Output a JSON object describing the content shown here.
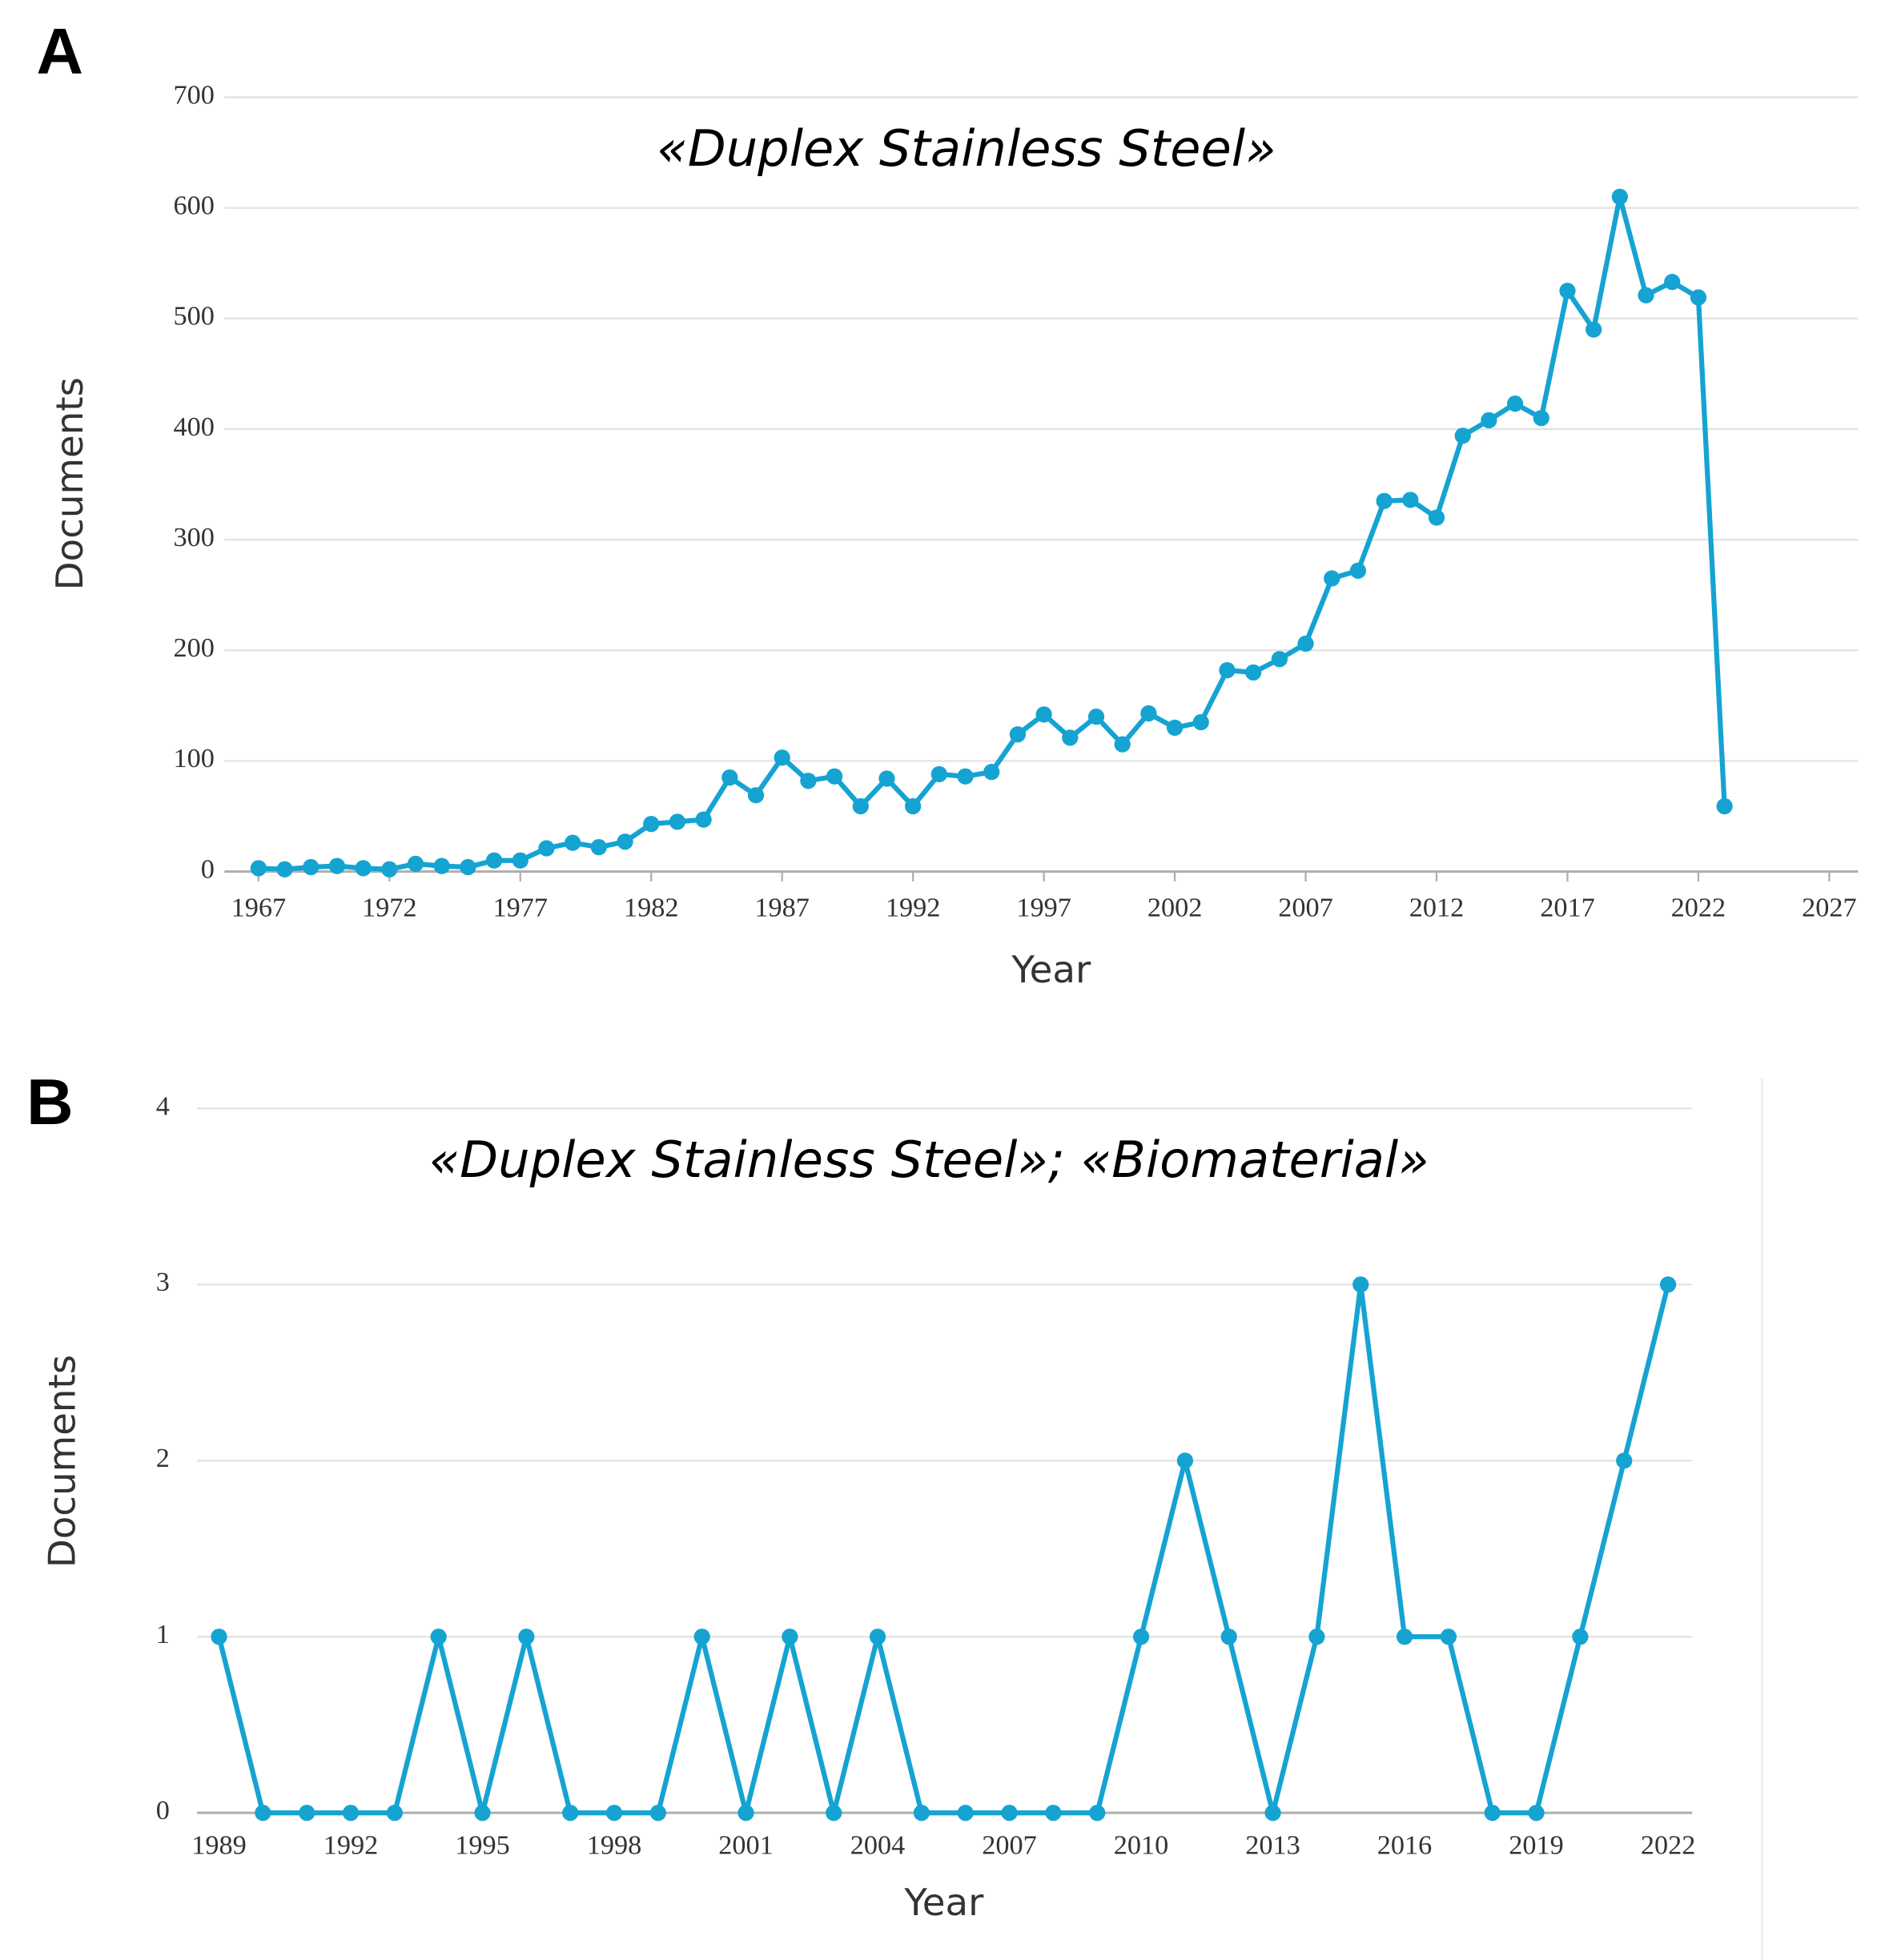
{
  "chart_data": [
    {
      "type": "line",
      "label": "A",
      "title": "«Duplex Stainless Steel»",
      "x_label": "Year",
      "y_label": "Documents",
      "color": "#15a3d2",
      "grid": true,
      "x": [
        1967,
        1968,
        1969,
        1970,
        1971,
        1972,
        1973,
        1974,
        1975,
        1976,
        1977,
        1978,
        1979,
        1980,
        1981,
        1982,
        1983,
        1984,
        1985,
        1986,
        1987,
        1988,
        1989,
        1990,
        1991,
        1992,
        1993,
        1994,
        1995,
        1996,
        1997,
        1998,
        1999,
        2000,
        2001,
        2002,
        2003,
        2004,
        2005,
        2006,
        2007,
        2008,
        2009,
        2010,
        2011,
        2012,
        2013,
        2014,
        2015,
        2016,
        2017,
        2018,
        2019,
        2020,
        2021,
        2022,
        2023
      ],
      "values": [
        3,
        2,
        4,
        5,
        3,
        2,
        7,
        5,
        4,
        10,
        10,
        21,
        26,
        22,
        27,
        43,
        45,
        47,
        85,
        69,
        103,
        82,
        86,
        59,
        84,
        59,
        88,
        86,
        90,
        124,
        142,
        121,
        140,
        115,
        143,
        130,
        135,
        182,
        180,
        192,
        206,
        265,
        272,
        335,
        336,
        320,
        394,
        408,
        423,
        410,
        525,
        490,
        610,
        521,
        533,
        519,
        59
      ],
      "xlim": [
        1965.7,
        2028.1
      ],
      "xticks": [
        1967,
        1972,
        1977,
        1982,
        1987,
        1992,
        1997,
        2002,
        2007,
        2012,
        2017,
        2022,
        2027
      ],
      "ylim": [
        0,
        700
      ],
      "yticks": [
        0,
        100,
        200,
        300,
        400,
        500,
        600,
        700
      ]
    },
    {
      "type": "line",
      "label": "B",
      "title": "«Duplex Stainless Steel»; «Biomaterial»",
      "x_label": "Year",
      "y_label": "Documents",
      "color": "#15a3d2",
      "grid": true,
      "x": [
        1989,
        1990,
        1991,
        1992,
        1993,
        1994,
        1995,
        1996,
        1997,
        1998,
        1999,
        2000,
        2001,
        2002,
        2003,
        2004,
        2005,
        2006,
        2007,
        2008,
        2009,
        2010,
        2011,
        2012,
        2013,
        2014,
        2015,
        2016,
        2017,
        2018,
        2019,
        2020,
        2021,
        2022
      ],
      "values": [
        1,
        0,
        0,
        0,
        0,
        1,
        0,
        1,
        0,
        0,
        0,
        1,
        0,
        1,
        0,
        1,
        0,
        0,
        0,
        0,
        0,
        1,
        2,
        1,
        0,
        1,
        3,
        1,
        1,
        0,
        0,
        1,
        2,
        3
      ],
      "xlim": [
        1988.5,
        2022.55
      ],
      "xticks": [
        1989,
        1992,
        1995,
        1998,
        2001,
        2004,
        2007,
        2010,
        2013,
        2016,
        2019,
        2022
      ],
      "ylim": [
        0,
        4
      ],
      "yticks": [
        0,
        1,
        2,
        3,
        4
      ]
    }
  ]
}
